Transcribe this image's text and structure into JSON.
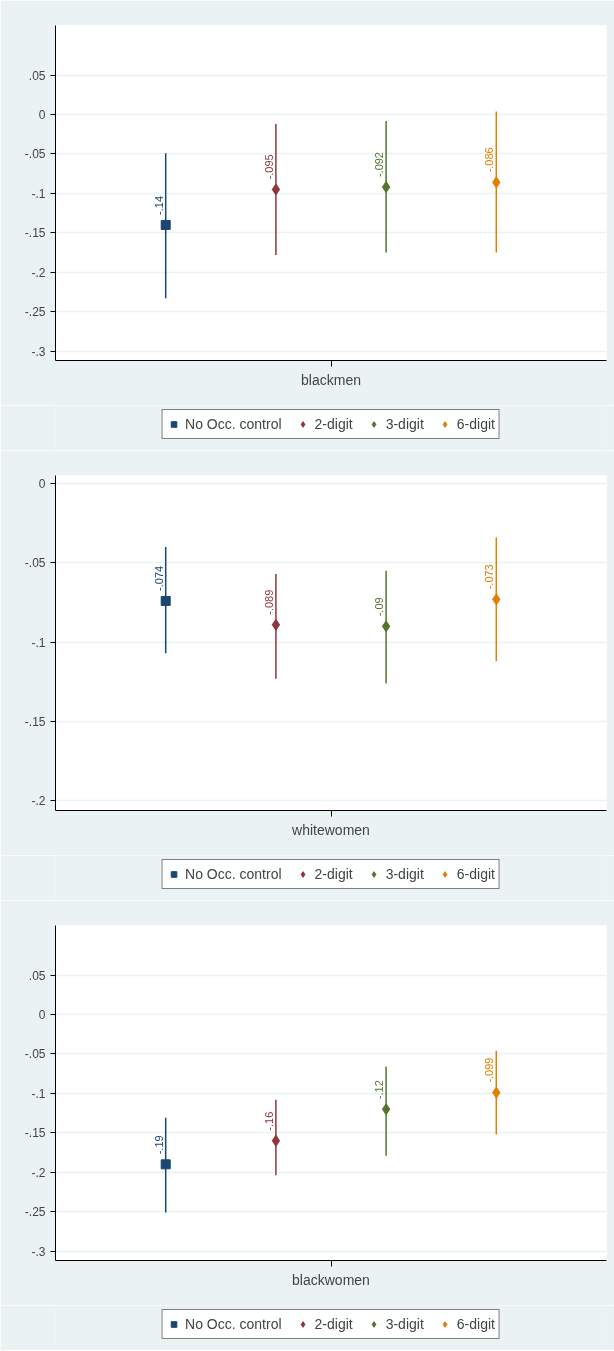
{
  "chart_data": [
    {
      "type": "scatter",
      "categories": [
        "blackmen"
      ],
      "ylim": [
        -0.312,
        0.113
      ],
      "yticks": [
        {
          "value": 0.05,
          "label": ".05"
        },
        {
          "value": 0,
          "label": "0"
        },
        {
          "value": -0.05,
          "label": "-.05"
        },
        {
          "value": -0.1,
          "label": "-.1"
        },
        {
          "value": -0.15,
          "label": "-.15"
        },
        {
          "value": -0.2,
          "label": "-.2"
        },
        {
          "value": -0.25,
          "label": "-.25"
        },
        {
          "value": -0.3,
          "label": "-.3"
        }
      ],
      "grid": "y",
      "legend": "bottom",
      "series": [
        {
          "name": "No Occ. control",
          "color": "#1a476f",
          "marker": "square",
          "values": [
            -0.14
          ],
          "errors": [
            [
              -0.233,
              -0.049
            ]
          ],
          "value_labels": [
            "-.14"
          ]
        },
        {
          "name": "2-digit",
          "color": "#90353b",
          "marker": "diamond",
          "values": [
            -0.095
          ],
          "errors": [
            [
              -0.178,
              -0.012
            ]
          ],
          "value_labels": [
            "-.095"
          ]
        },
        {
          "name": "3-digit",
          "color": "#55752f",
          "marker": "diamond",
          "values": [
            -0.092
          ],
          "errors": [
            [
              -0.175,
              -0.008
            ]
          ],
          "value_labels": [
            "-.092"
          ]
        },
        {
          "name": "6-digit",
          "color": "#e37e00",
          "marker": "diamond",
          "values": [
            -0.086
          ],
          "errors": [
            [
              -0.175,
              0.004
            ]
          ],
          "value_labels": [
            "-.086"
          ]
        }
      ]
    },
    {
      "type": "scatter",
      "categories": [
        "whitewomen"
      ],
      "ylim": [
        -0.206,
        0.005
      ],
      "yticks": [
        {
          "value": 0,
          "label": "0"
        },
        {
          "value": -0.05,
          "label": "-.05"
        },
        {
          "value": -0.1,
          "label": "-.1"
        },
        {
          "value": -0.15,
          "label": "-.15"
        },
        {
          "value": -0.2,
          "label": "-.2"
        }
      ],
      "grid": "y",
      "legend": "bottom",
      "series": [
        {
          "name": "No Occ. control",
          "color": "#1a476f",
          "marker": "square",
          "values": [
            -0.074
          ],
          "errors": [
            [
              -0.107,
              -0.04
            ]
          ],
          "value_labels": [
            "-.074"
          ]
        },
        {
          "name": "2-digit",
          "color": "#90353b",
          "marker": "diamond",
          "values": [
            -0.089
          ],
          "errors": [
            [
              -0.123,
              -0.057
            ]
          ],
          "value_labels": [
            "-.089"
          ]
        },
        {
          "name": "3-digit",
          "color": "#55752f",
          "marker": "diamond",
          "values": [
            -0.09
          ],
          "errors": [
            [
              -0.126,
              -0.055
            ]
          ],
          "value_labels": [
            "-.09"
          ]
        },
        {
          "name": "6-digit",
          "color": "#e37e00",
          "marker": "diamond",
          "values": [
            -0.073
          ],
          "errors": [
            [
              -0.112,
              -0.034
            ]
          ],
          "value_labels": [
            "-.073"
          ]
        }
      ]
    },
    {
      "type": "scatter",
      "categories": [
        "blackwomen"
      ],
      "ylim": [
        -0.312,
        0.113
      ],
      "yticks": [
        {
          "value": 0.05,
          "label": ".05"
        },
        {
          "value": 0,
          "label": "0"
        },
        {
          "value": -0.05,
          "label": "-.05"
        },
        {
          "value": -0.1,
          "label": "-.1"
        },
        {
          "value": -0.15,
          "label": "-.15"
        },
        {
          "value": -0.2,
          "label": "-.2"
        },
        {
          "value": -0.25,
          "label": "-.25"
        },
        {
          "value": -0.3,
          "label": "-.3"
        }
      ],
      "grid": "y",
      "legend": "bottom",
      "series": [
        {
          "name": "No Occ. control",
          "color": "#1a476f",
          "marker": "square",
          "values": [
            -0.19
          ],
          "errors": [
            [
              -0.251,
              -0.131
            ]
          ],
          "value_labels": [
            "-.19"
          ]
        },
        {
          "name": "2-digit",
          "color": "#90353b",
          "marker": "diamond",
          "values": [
            -0.16
          ],
          "errors": [
            [
              -0.204,
              -0.108
            ]
          ],
          "value_labels": [
            "-.16"
          ]
        },
        {
          "name": "3-digit",
          "color": "#55752f",
          "marker": "diamond",
          "values": [
            -0.12
          ],
          "errors": [
            [
              -0.179,
              -0.066
            ]
          ],
          "value_labels": [
            "-.12"
          ]
        },
        {
          "name": "6-digit",
          "color": "#e37e00",
          "marker": "diamond",
          "values": [
            -0.099
          ],
          "errors": [
            [
              -0.152,
              -0.046
            ]
          ],
          "value_labels": [
            "-.099"
          ]
        }
      ]
    }
  ]
}
